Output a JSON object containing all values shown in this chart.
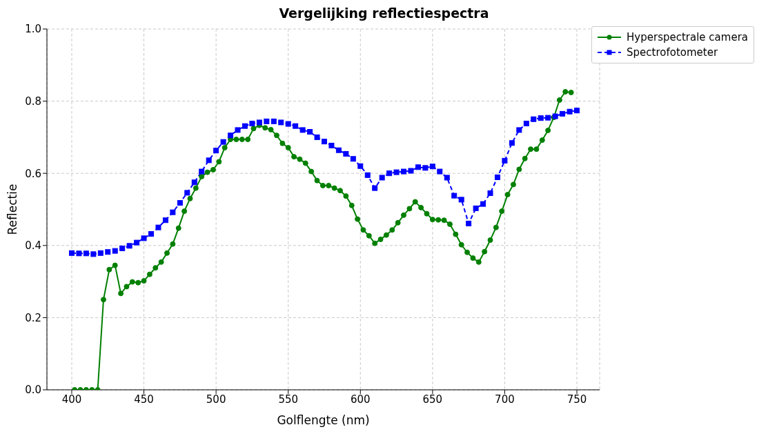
{
  "chart_data": {
    "type": "line",
    "title": "Vergelijking reflectiespectra",
    "xlabel": "Golflengte (nm)",
    "ylabel": "Reflectie",
    "xlim": [
      382.8,
      765.8
    ],
    "xticks": [
      400,
      450,
      500,
      550,
      600,
      650,
      700,
      750
    ],
    "ylim": [
      0,
      1
    ],
    "yticks": [
      {
        "value": 0,
        "label": "0.0"
      },
      {
        "value": 0.2,
        "label": "0.2"
      },
      {
        "value": 0.4,
        "label": "0.4"
      },
      {
        "value": 0.6,
        "label": "0.6"
      },
      {
        "value": 0.8,
        "label": "0.8"
      },
      {
        "value": 1,
        "label": "1.0"
      }
    ],
    "grid": true,
    "legend": "top right",
    "series": [
      {
        "name": "Hyperspectrale camera",
        "color": "#008000",
        "marker": "circle",
        "line_style": "solid",
        "x": [
          402,
          406,
          410,
          414,
          418,
          422,
          426,
          430,
          434,
          438,
          442,
          446,
          450,
          454,
          458,
          462,
          466,
          470,
          474,
          478,
          482,
          486,
          490,
          494,
          498,
          502,
          506,
          510,
          514,
          518,
          522,
          526,
          530,
          534,
          538,
          542,
          546,
          550,
          554,
          558,
          562,
          566,
          570,
          574,
          578,
          582,
          586,
          590,
          594,
          598,
          602,
          606,
          610,
          614,
          618,
          622,
          626,
          630,
          634,
          638,
          642,
          646,
          650,
          654,
          658,
          662,
          666,
          670,
          674,
          678,
          682,
          686,
          690,
          694,
          698,
          702,
          706,
          710,
          714,
          718,
          722,
          726,
          730,
          734,
          738,
          742,
          746
        ],
        "values": [
          0,
          0,
          0,
          0,
          0,
          0.25,
          0.333,
          0.345,
          0.267,
          0.286,
          0.299,
          0.297,
          0.302,
          0.32,
          0.338,
          0.354,
          0.379,
          0.404,
          0.448,
          0.495,
          0.53,
          0.559,
          0.591,
          0.603,
          0.61,
          0.632,
          0.671,
          0.694,
          0.694,
          0.694,
          0.694,
          0.724,
          0.733,
          0.726,
          0.721,
          0.705,
          0.683,
          0.671,
          0.646,
          0.639,
          0.628,
          0.605,
          0.58,
          0.566,
          0.566,
          0.559,
          0.552,
          0.537,
          0.511,
          0.473,
          0.443,
          0.427,
          0.406,
          0.417,
          0.429,
          0.443,
          0.463,
          0.484,
          0.502,
          0.521,
          0.505,
          0.488,
          0.472,
          0.471,
          0.47,
          0.459,
          0.431,
          0.402,
          0.381,
          0.365,
          0.354,
          0.383,
          0.415,
          0.45,
          0.495,
          0.541,
          0.569,
          0.611,
          0.641,
          0.667,
          0.667,
          0.692,
          0.719,
          0.755,
          0.803,
          0.826,
          0.824
        ]
      },
      {
        "name": "Spectrofotometer",
        "color": "#0000ff",
        "marker": "square",
        "line_style": "dashed",
        "x": [
          400,
          405,
          410,
          415,
          420,
          425,
          430,
          435,
          440,
          445,
          450,
          455,
          460,
          465,
          470,
          475,
          480,
          485,
          490,
          495,
          500,
          505,
          510,
          515,
          520,
          525,
          530,
          535,
          540,
          545,
          550,
          555,
          560,
          565,
          570,
          575,
          580,
          585,
          590,
          595,
          600,
          605,
          610,
          615,
          620,
          625,
          630,
          635,
          640,
          645,
          650,
          655,
          660,
          665,
          670,
          675,
          680,
          685,
          690,
          695,
          700,
          705,
          710,
          715,
          720,
          725,
          730,
          735,
          740,
          745,
          750
        ],
        "values": [
          0.379,
          0.378,
          0.378,
          0.376,
          0.379,
          0.382,
          0.385,
          0.392,
          0.399,
          0.408,
          0.42,
          0.432,
          0.45,
          0.47,
          0.492,
          0.518,
          0.546,
          0.575,
          0.605,
          0.636,
          0.663,
          0.687,
          0.705,
          0.72,
          0.731,
          0.738,
          0.741,
          0.744,
          0.744,
          0.741,
          0.737,
          0.731,
          0.72,
          0.715,
          0.7,
          0.688,
          0.677,
          0.664,
          0.654,
          0.64,
          0.62,
          0.595,
          0.559,
          0.588,
          0.6,
          0.603,
          0.605,
          0.607,
          0.617,
          0.615,
          0.619,
          0.605,
          0.588,
          0.538,
          0.527,
          0.461,
          0.503,
          0.515,
          0.545,
          0.589,
          0.635,
          0.684,
          0.72,
          0.738,
          0.75,
          0.753,
          0.754,
          0.758,
          0.765,
          0.771,
          0.774
        ]
      }
    ]
  }
}
